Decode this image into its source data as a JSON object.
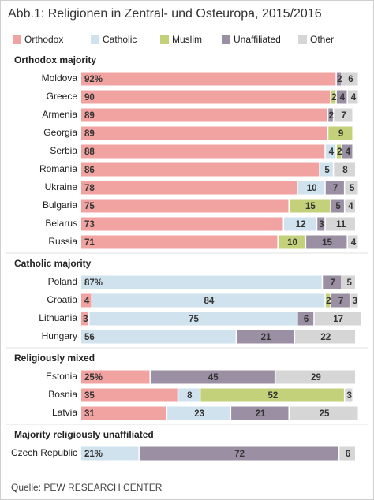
{
  "title": "Abb.1: Religionen in Zentral- und Osteuropa, 2015/2016",
  "source": "Quelle: PEW RESEARCH CENTER",
  "legend": [
    {
      "name": "Orthodox",
      "color": "#f0a3a0"
    },
    {
      "name": "Catholic",
      "color": "#cfe2ee"
    },
    {
      "name": "Muslim",
      "color": "#c2d17a"
    },
    {
      "name": "Unaffiliated",
      "color": "#9a8fa3"
    },
    {
      "name": "Other",
      "color": "#d6d6d6"
    }
  ],
  "chart_data": [
    {
      "type": "bar",
      "stacked": true,
      "title": "Orthodox majority",
      "xlim": [
        0,
        100
      ],
      "categories": [
        "Moldova",
        "Greece",
        "Armenia",
        "Georgia",
        "Serbia",
        "Romania",
        "Ukraine",
        "Bulgaria",
        "Belarus",
        "Russia"
      ],
      "series": [
        {
          "values": [
            92,
            90,
            89,
            89,
            88,
            86,
            78,
            75,
            73,
            71
          ],
          "value_labels": [
            "92%",
            "90",
            "89",
            "89",
            "88",
            "86",
            "78",
            "75",
            "73",
            "71"
          ]
        },
        {
          "values": [
            null,
            null,
            null,
            null,
            4,
            5,
            10,
            null,
            12,
            null
          ]
        },
        {
          "values": [
            null,
            2,
            null,
            9,
            2,
            null,
            null,
            15,
            null,
            10
          ]
        },
        {
          "values": [
            2,
            4,
            2,
            null,
            4,
            null,
            7,
            5,
            3,
            15
          ]
        },
        {
          "values": [
            6,
            4,
            7,
            null,
            null,
            8,
            5,
            4,
            11,
            4
          ]
        }
      ]
    },
    {
      "type": "bar",
      "stacked": true,
      "title": "Catholic majority",
      "xlim": [
        0,
        100
      ],
      "categories": [
        "Poland",
        "Croatia",
        "Lithuania",
        "Hungary"
      ],
      "series": [
        {
          "values": [
            null,
            4,
            3,
            null
          ]
        },
        {
          "values": [
            87,
            84,
            75,
            56
          ],
          "value_labels": [
            "87%",
            "84",
            "75",
            "56"
          ]
        },
        {
          "values": [
            null,
            2,
            null,
            null
          ]
        },
        {
          "values": [
            7,
            7,
            6,
            21
          ]
        },
        {
          "values": [
            5,
            3,
            17,
            22
          ]
        }
      ]
    },
    {
      "type": "bar",
      "stacked": true,
      "title": "Religiously mixed",
      "xlim": [
        0,
        100
      ],
      "categories": [
        "Estonia",
        "Bosnia",
        "Latvia"
      ],
      "series": [
        {
          "values": [
            25,
            35,
            31
          ],
          "value_labels": [
            "25%",
            "35",
            "31"
          ]
        },
        {
          "values": [
            null,
            8,
            23
          ]
        },
        {
          "values": [
            null,
            52,
            null
          ]
        },
        {
          "values": [
            45,
            null,
            21
          ]
        },
        {
          "values": [
            29,
            3,
            25
          ]
        }
      ]
    },
    {
      "type": "bar",
      "stacked": true,
      "title": "Majority religiously unaffiliated",
      "xlim": [
        0,
        100
      ],
      "categories": [
        "Czech Republic"
      ],
      "series": [
        {
          "values": [
            null
          ]
        },
        {
          "values": [
            21
          ],
          "value_labels": [
            "21%"
          ]
        },
        {
          "values": [
            null
          ]
        },
        {
          "values": [
            72
          ]
        },
        {
          "values": [
            6
          ]
        }
      ]
    }
  ]
}
